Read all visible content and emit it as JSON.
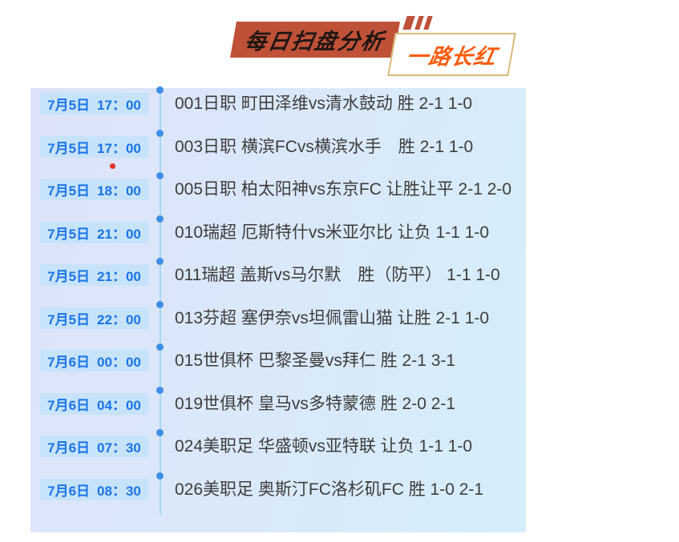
{
  "header": {
    "title": "每日扫盘分析",
    "subtitle": "一路长红"
  },
  "theme": {
    "banner-red": "#bf5138",
    "title-text": "#201612",
    "subtitle-orange": "#fe5b0c",
    "gold-border": "#d9b877",
    "panel-grad-left": "#dde3f9",
    "panel-grad-right": "#d6eefb",
    "badge-blue-bg": "#c7e3fa",
    "badge-blue-text": "#1a74e8",
    "timeline-blue": "#a9d8f3",
    "dot-blue": "#3e8ee6",
    "red-dot": "#e73228",
    "row-text": "#3d3d3d"
  },
  "matches": [
    {
      "date": "7月5日",
      "time": "17：00",
      "text": "001日职 町田泽维vs清水鼓动 胜 2-1 1-0"
    },
    {
      "date": "7月5日",
      "time": "17：00",
      "text": "003日职 横滨FCvs横滨水手　胜 2-1 1-0"
    },
    {
      "date": "7月5日",
      "time": "18：00",
      "text": "005日职 柏太阳神vs东京FC 让胜让平 2-1 2-0"
    },
    {
      "date": "7月5日",
      "time": "21：00",
      "text": "010瑞超 厄斯特什vs米亚尔比 让负 1-1 1-0"
    },
    {
      "date": "7月5日",
      "time": "21：00",
      "text": "011瑞超 盖斯vs马尔默　胜（防平） 1-1 1-0"
    },
    {
      "date": "7月5日",
      "time": "22：00",
      "text": "013芬超 塞伊奈vs坦佩雷山猫 让胜 2-1 1-0"
    },
    {
      "date": "7月6日",
      "time": "00：00",
      "text": "015世俱杯 巴黎圣曼vs拜仁 胜 2-1 3-1"
    },
    {
      "date": "7月6日",
      "time": "04：00",
      "text": "019世俱杯 皇马vs多特蒙德 胜 2-0 2-1"
    },
    {
      "date": "7月6日",
      "time": "07：30",
      "text": "024美职足 华盛顿vs亚特联 让负 1-1 1-0"
    },
    {
      "date": "7月6日",
      "time": "08：30",
      "text": "026美职足 奥斯汀FC洛杉矶FC 胜 1-0 2-1"
    }
  ]
}
